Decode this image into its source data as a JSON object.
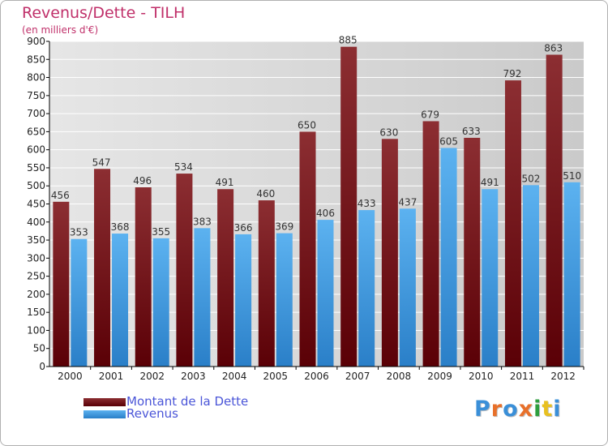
{
  "title": "Revenus/Dette - TILH",
  "subtitle": "(en milliers d'€)",
  "logo": {
    "text": "Proxiti",
    "colors": [
      "#3a8fd8",
      "#e8702a",
      "#3a8fd8",
      "#e8702a",
      "#2e9e3e",
      "#e8c020",
      "#3a8fd8"
    ]
  },
  "colors": {
    "dette": "#6e0e12",
    "revenus": "#4aa3e8",
    "axis": "#000000",
    "grid": "#ffffff",
    "plot_bg": "#d8d8d8"
  },
  "chart_data": {
    "type": "bar",
    "title": "Revenus/Dette - TILH",
    "subtitle": "(en milliers d'€)",
    "xlabel": "",
    "ylabel": "",
    "ylim": [
      0,
      900
    ],
    "yticks": [
      0,
      50,
      100,
      150,
      200,
      250,
      300,
      350,
      400,
      450,
      500,
      550,
      600,
      650,
      700,
      750,
      800,
      850,
      900
    ],
    "grid": true,
    "legend": "bottom-left",
    "categories": [
      "2000",
      "2001",
      "2002",
      "2003",
      "2004",
      "2005",
      "2006",
      "2007",
      "2008",
      "2009",
      "2010",
      "2011",
      "2012"
    ],
    "series": [
      {
        "name": "Montant de la Dette",
        "color": "#6e0e12",
        "values": [
          456,
          547,
          496,
          534,
          491,
          460,
          650,
          885,
          630,
          679,
          633,
          792,
          863
        ]
      },
      {
        "name": "Revenus",
        "color": "#4aa3e8",
        "values": [
          353,
          368,
          355,
          383,
          366,
          369,
          406,
          433,
          437,
          605,
          491,
          502,
          510
        ]
      }
    ]
  }
}
